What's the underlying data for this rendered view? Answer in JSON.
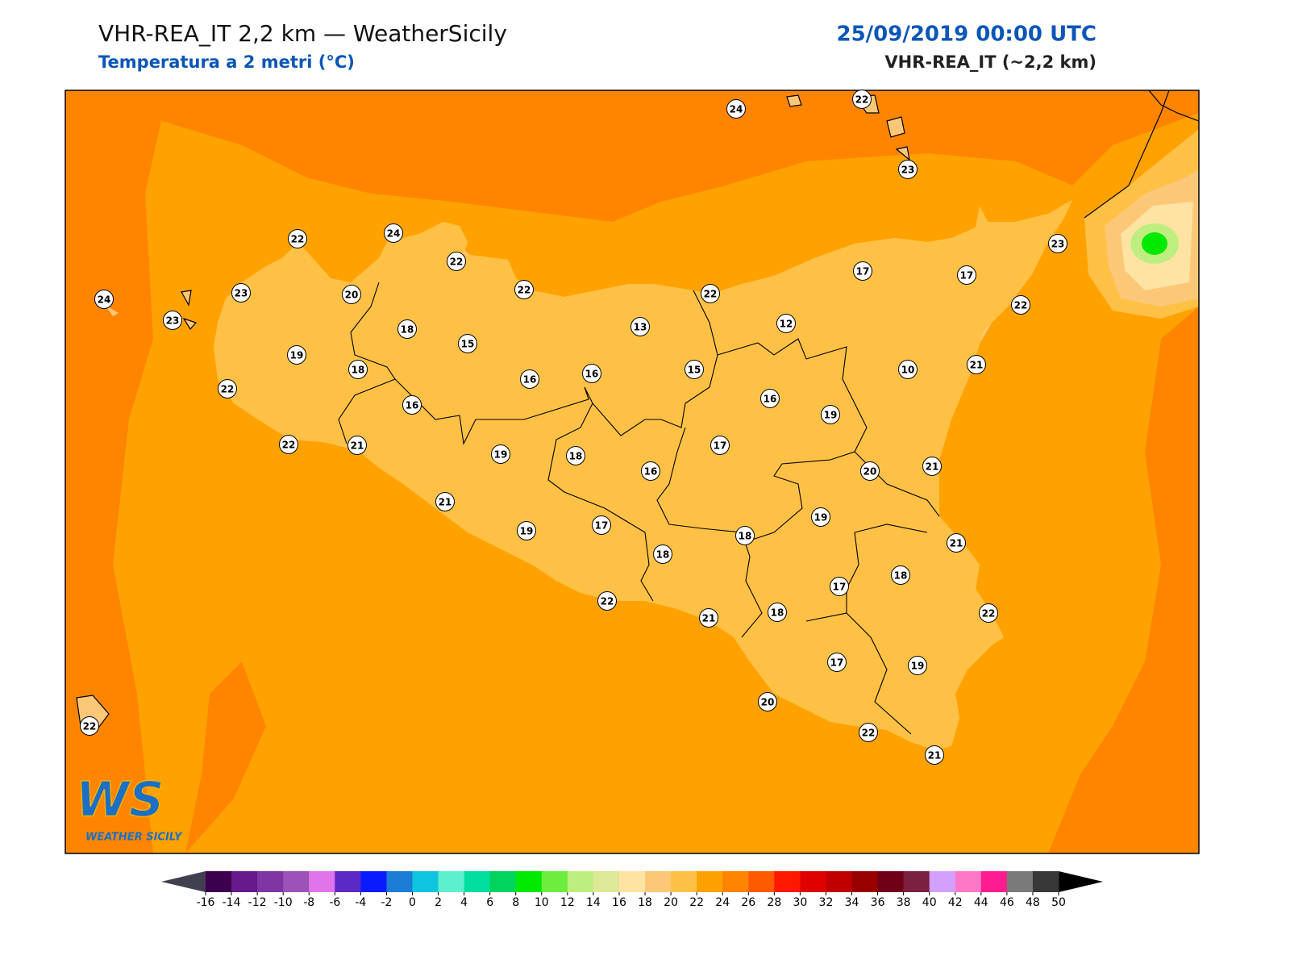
{
  "header": {
    "title": "VHR-REA_IT 2,2 km — WeatherSicily",
    "subtitle": "Temperatura a 2 metri (°C)",
    "datetime": "25/09/2019 00:00 UTC",
    "model": "VHR-REA_IT (~2,2 km)"
  },
  "stations": [
    24,
    22,
    23,
    22,
    24,
    22,
    22,
    22,
    17,
    17,
    23,
    22,
    24,
    23,
    20,
    23,
    18,
    15,
    13,
    12,
    10,
    21,
    19,
    18,
    16,
    16,
    15,
    16,
    22,
    16,
    19,
    22,
    21,
    19,
    18,
    16,
    17,
    20,
    21,
    21,
    19,
    17,
    18,
    18,
    19,
    21,
    17,
    18,
    22,
    21,
    18,
    22,
    17,
    19,
    20,
    22,
    21,
    22
  ],
  "logo": {
    "mark": "WS",
    "name": "WEATHER SICILY"
  },
  "colorbar": {
    "ticks": [
      -16,
      -14,
      -12,
      -10,
      -8,
      -6,
      -4,
      -2,
      0,
      2,
      4,
      6,
      8,
      10,
      12,
      14,
      16,
      18,
      20,
      22,
      24,
      26,
      28,
      30,
      32,
      34,
      36,
      38,
      40,
      42,
      44,
      46,
      48,
      50
    ],
    "colors": [
      "#3c004e",
      "#661a8c",
      "#7f35a3",
      "#9c52b6",
      "#e074ea",
      "#5b2ac6",
      "#0a1cff",
      "#1c7dd6",
      "#0fc4df",
      "#5df0cf",
      "#00dea0",
      "#00d45c",
      "#00ea00",
      "#6ded3e",
      "#bfee80",
      "#dfe898",
      "#ffe3a2",
      "#fdc778",
      "#ffc145",
      "#ffa200",
      "#ff8500",
      "#ff5a00",
      "#ff1800",
      "#e00000",
      "#c00000",
      "#980000",
      "#700018",
      "#7a2040",
      "#d3a0ff",
      "#ff78c8",
      "#ff1c90",
      "#7a7a7a",
      "#383838"
    ],
    "under_color": "#404050",
    "over_color": "#000000"
  }
}
